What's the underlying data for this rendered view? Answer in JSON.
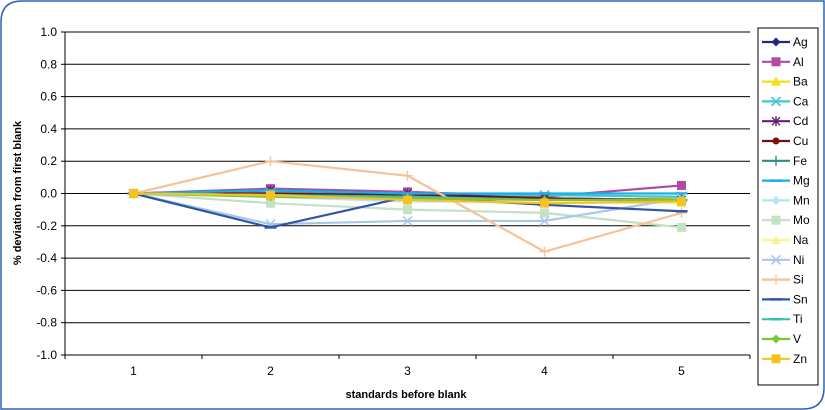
{
  "colors": {
    "frame": "#2e62b8",
    "grid": "#000000"
  },
  "chart_data": {
    "type": "line",
    "title": "",
    "xlabel": "standards before blank",
    "ylabel": "% deviation from first blank",
    "x": [
      1,
      2,
      3,
      4,
      5
    ],
    "x_tick_labels": [
      "1",
      "2",
      "3",
      "4",
      "5"
    ],
    "ylim": [
      -1.0,
      1.0
    ],
    "y_ticks": [
      -1.0,
      -0.8,
      -0.6,
      -0.4,
      -0.2,
      0.0,
      0.2,
      0.4,
      0.6,
      0.8,
      1.0
    ],
    "y_tick_labels": [
      "-1.0",
      "-0.8",
      "-0.6",
      "-0.4",
      "-0.2",
      "0.0",
      "0.2",
      "0.4",
      "0.6",
      "0.8",
      "1.0"
    ],
    "grid": "horizontal",
    "legend_position": "right",
    "series": [
      {
        "name": "Ag",
        "color": "#1f2a7a",
        "marker": "diamond",
        "values": [
          0,
          0.01,
          0.0,
          -0.03,
          -0.04
        ]
      },
      {
        "name": "Al",
        "color": "#b04aa6",
        "marker": "square",
        "values": [
          0,
          0.03,
          0.01,
          -0.02,
          0.05
        ]
      },
      {
        "name": "Ba",
        "color": "#f2e11a",
        "marker": "triangle",
        "values": [
          0,
          -0.01,
          -0.02,
          -0.04,
          -0.03
        ]
      },
      {
        "name": "Ca",
        "color": "#3ec7cf",
        "marker": "x",
        "values": [
          0,
          0.01,
          -0.01,
          -0.01,
          -0.02
        ]
      },
      {
        "name": "Cd",
        "color": "#6c1f78",
        "marker": "asterisk",
        "values": [
          0,
          0.02,
          0.0,
          -0.03,
          -0.04
        ]
      },
      {
        "name": "Cu",
        "color": "#7a0f0f",
        "marker": "circle",
        "values": [
          0,
          0.0,
          -0.01,
          -0.03,
          -0.05
        ]
      },
      {
        "name": "Fe",
        "color": "#2a8c8c",
        "marker": "plus",
        "values": [
          0,
          -0.01,
          -0.02,
          -0.04,
          -0.05
        ]
      },
      {
        "name": "Mg",
        "color": "#16b0e8",
        "marker": "dash",
        "values": [
          0,
          0.02,
          0.0,
          0.0,
          0.0
        ]
      },
      {
        "name": "Mn",
        "color": "#b8e2f2",
        "marker": "diamond",
        "values": [
          0,
          -0.02,
          -0.05,
          -0.05,
          -0.06
        ]
      },
      {
        "name": "Mo",
        "color": "#c4e1c4",
        "marker": "square",
        "values": [
          0,
          -0.06,
          -0.1,
          -0.12,
          -0.21
        ]
      },
      {
        "name": "Na",
        "color": "#fbf39b",
        "marker": "triangle",
        "values": [
          0,
          -0.01,
          -0.03,
          -0.05,
          -0.06
        ]
      },
      {
        "name": "Ni",
        "color": "#a8c8e8",
        "marker": "x",
        "values": [
          0,
          -0.19,
          -0.17,
          -0.17,
          -0.03
        ]
      },
      {
        "name": "Si",
        "color": "#f6c29a",
        "marker": "plus",
        "values": [
          0,
          0.2,
          0.11,
          -0.36,
          -0.12
        ]
      },
      {
        "name": "Sn",
        "color": "#3055a8",
        "marker": "dash",
        "values": [
          0,
          -0.21,
          -0.02,
          -0.07,
          -0.11
        ]
      },
      {
        "name": "Ti",
        "color": "#33c1b6",
        "marker": "dash",
        "values": [
          0,
          -0.01,
          -0.02,
          -0.04,
          -0.04
        ]
      },
      {
        "name": "V",
        "color": "#7ec43a",
        "marker": "diamond",
        "values": [
          0,
          -0.02,
          -0.03,
          -0.04,
          -0.04
        ]
      },
      {
        "name": "Zn",
        "color": "#f5c221",
        "marker": "square",
        "values": [
          0,
          -0.01,
          -0.04,
          -0.06,
          -0.05
        ]
      }
    ]
  }
}
